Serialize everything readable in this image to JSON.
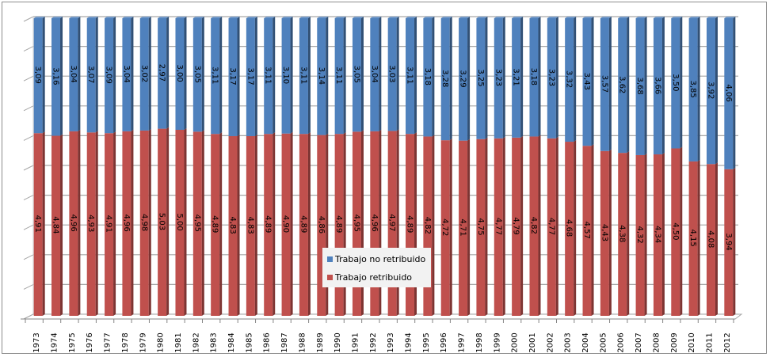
{
  "chart_data": {
    "type": "bar",
    "stacked": "percent",
    "style": "3d-column",
    "title": "",
    "xlabel": "",
    "ylabel": "",
    "ylim": [
      0,
      100
    ],
    "grid": true,
    "legend_position": "center-bottom",
    "categories": [
      "1973",
      "1974",
      "1975",
      "1976",
      "1977",
      "1978",
      "1979",
      "1980",
      "1981",
      "1982",
      "1983",
      "1984",
      "1985",
      "1986",
      "1987",
      "1988",
      "1989",
      "1990",
      "1991",
      "1992",
      "1993",
      "1994",
      "1995",
      "1996",
      "1997",
      "1998",
      "1999",
      "2000",
      "2001",
      "2002",
      "2003",
      "2004",
      "2005",
      "2006",
      "2007",
      "2008",
      "2009",
      "2010",
      "2011",
      "2012"
    ],
    "series": [
      {
        "name": "Trabajo retribuido",
        "color": "#c0504d",
        "values": [
          4.91,
          4.84,
          4.96,
          4.93,
          4.91,
          4.96,
          4.98,
          5.03,
          5.0,
          4.95,
          4.89,
          4.83,
          4.83,
          4.89,
          4.9,
          4.89,
          4.86,
          4.89,
          4.95,
          4.96,
          4.97,
          4.89,
          4.82,
          4.72,
          4.71,
          4.75,
          4.77,
          4.79,
          4.82,
          4.77,
          4.68,
          4.57,
          4.43,
          4.38,
          4.32,
          4.34,
          4.5,
          4.15,
          4.08,
          3.94
        ],
        "labels": [
          "4,91",
          "4,84",
          "4,96",
          "4,93",
          "4,91",
          "4,96",
          "4,98",
          "5,03",
          "5,00",
          "4,95",
          "4,89",
          "4,83",
          "4,83",
          "4,89",
          "4,90",
          "4,89",
          "4,86",
          "4,89",
          "4,95",
          "4,96",
          "4,97",
          "4,89",
          "4,82",
          "4,72",
          "4,71",
          "4,75",
          "4,77",
          "4,79",
          "4,82",
          "4,77",
          "4,68",
          "4,57",
          "4,43",
          "4,38",
          "4,32",
          "4,34",
          "4,50",
          "4,15",
          "4,08",
          "3,94"
        ]
      },
      {
        "name": "Trabajo no retribuido",
        "color": "#4f81bd",
        "values": [
          3.09,
          3.16,
          3.04,
          3.07,
          3.09,
          3.04,
          3.02,
          2.97,
          3.0,
          3.05,
          3.11,
          3.17,
          3.17,
          3.11,
          3.1,
          3.11,
          3.14,
          3.11,
          3.05,
          3.04,
          3.03,
          3.11,
          3.18,
          3.28,
          3.29,
          3.25,
          3.23,
          3.21,
          3.18,
          3.23,
          3.32,
          3.43,
          3.57,
          3.62,
          3.68,
          3.66,
          3.5,
          3.85,
          3.92,
          4.06
        ],
        "labels": [
          "3,09",
          "3,16",
          "3,04",
          "3,07",
          "3,09",
          "3,04",
          "3,02",
          "2,97",
          "3,00",
          "3,05",
          "3,11",
          "3,17",
          "3,17",
          "3,11",
          "3,10",
          "3,11",
          "3,14",
          "3,11",
          "3,05",
          "3,04",
          "3,03",
          "3,11",
          "3,18",
          "3,28",
          "3,29",
          "3,25",
          "3,23",
          "3,21",
          "3,18",
          "3,23",
          "3,32",
          "3,43",
          "3,57",
          "3,62",
          "3,68",
          "3,66",
          "3,50",
          "3,85",
          "3,92",
          "4,06"
        ]
      }
    ]
  },
  "legend": {
    "items": [
      {
        "label": "Trabajo no retribuido",
        "color": "#4f81bd"
      },
      {
        "label": "Trabajo retribuido",
        "color": "#c0504d"
      }
    ]
  }
}
